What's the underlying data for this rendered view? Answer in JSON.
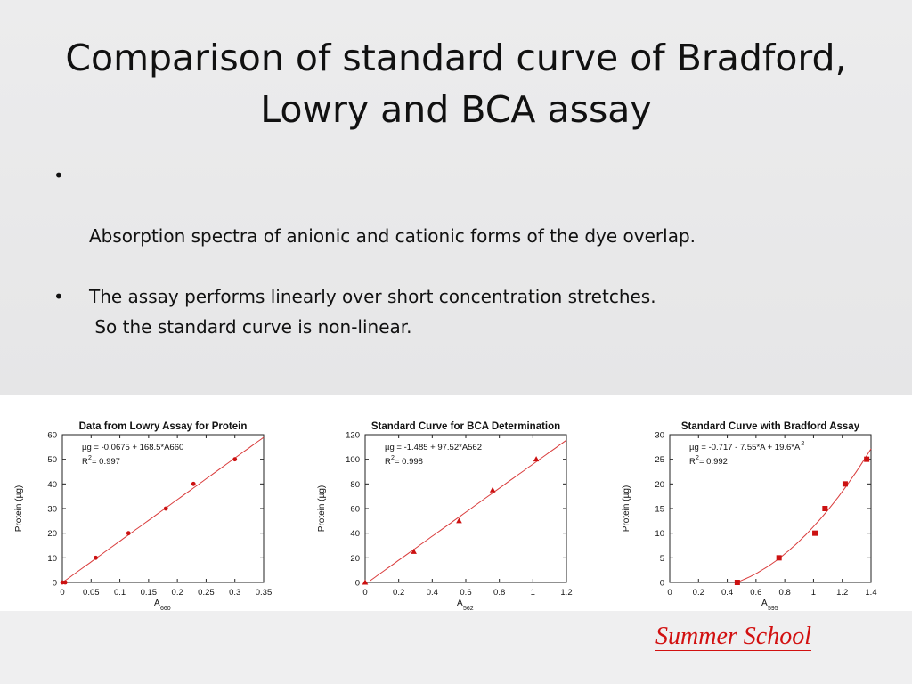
{
  "slide": {
    "title_line1": "Comparison of standard curve of Bradford,",
    "title_line2": "Lowry and BCA assay",
    "bullets": [
      {
        "line1": "Absorption spectra of anionic and cationic forms of the dye overlap.",
        "line2": " So the standard curve is non-linear."
      },
      {
        "line1": "The assay performs linearly over short concentration stretches."
      }
    ],
    "bullet_symbol": "•",
    "footer": "Summer School"
  },
  "colors": {
    "accent": "#d21010",
    "plot_line": "#d93b3b",
    "plot_point": "#cc1111"
  },
  "chart_data": [
    {
      "type": "scatter",
      "title": "Data from Lowry Assay for Protein",
      "ylabel": "Protein (µg)",
      "xlabel_main": "A",
      "xlabel_sub": "660",
      "equation": "µg = -0.0675 + 168.5*A660",
      "r2_label": "R",
      "r2_sup": "2",
      "r2_value": " = 0.997",
      "xlim": [
        0,
        0.35
      ],
      "ylim": [
        0,
        60
      ],
      "xticks": [
        0,
        0.05,
        0.1,
        0.15,
        0.2,
        0.25,
        0.3,
        0.35
      ],
      "xtick_labels": [
        "0",
        "0.05",
        "0.1",
        "0.15",
        "0.2",
        "0.25",
        "0.3",
        "0.35"
      ],
      "yticks": [
        0,
        10,
        20,
        30,
        40,
        50,
        60
      ],
      "ytick_labels": [
        "0",
        "10",
        "20",
        "30",
        "40",
        "50",
        "60"
      ],
      "marker": "circle",
      "x": [
        0,
        0.005,
        0.058,
        0.115,
        0.18,
        0.228,
        0.3
      ],
      "y": [
        0,
        0,
        10,
        20,
        30,
        40,
        50
      ],
      "fit": {
        "kind": "linear",
        "a": -0.0675,
        "b": 168.5,
        "c": 0
      }
    },
    {
      "type": "scatter",
      "title": "Standard Curve for BCA Determination",
      "ylabel": "Protein (µg)",
      "xlabel_main": "A",
      "xlabel_sub": "562",
      "equation": "µg = -1.485 + 97.52*A562",
      "r2_label": "R",
      "r2_sup": "2",
      "r2_value": " = 0.998",
      "xlim": [
        0,
        1.2
      ],
      "ylim": [
        0,
        120
      ],
      "xticks": [
        0,
        0.2,
        0.4,
        0.6,
        0.8,
        1,
        1.2
      ],
      "xtick_labels": [
        "0",
        "0.2",
        "0.4",
        "0.6",
        "0.8",
        "1",
        "1.2"
      ],
      "yticks": [
        0,
        20,
        40,
        60,
        80,
        100,
        120
      ],
      "ytick_labels": [
        "0",
        "20",
        "40",
        "60",
        "80",
        "100",
        "120"
      ],
      "marker": "triangle",
      "x": [
        0.0,
        0.29,
        0.56,
        0.76,
        1.02
      ],
      "y": [
        0,
        25,
        50,
        75,
        100
      ],
      "fit": {
        "kind": "linear",
        "a": -1.485,
        "b": 97.52,
        "c": 0
      }
    },
    {
      "type": "scatter",
      "title": "Standard Curve with Bradford Assay",
      "ylabel": "Protein (µg)",
      "xlabel_main": "A",
      "xlabel_sub": "595",
      "equation": "µg = -0.717 - 7.55*A + 19.6*A",
      "equation_sup": "2",
      "r2_label": "R",
      "r2_sup": "2",
      "r2_value": " = 0.992",
      "xlim": [
        0,
        1.4
      ],
      "ylim": [
        0,
        30
      ],
      "xticks": [
        0,
        0.2,
        0.4,
        0.6,
        0.8,
        1,
        1.2,
        1.4
      ],
      "xtick_labels": [
        "0",
        "0.2",
        "0.4",
        "0.6",
        "0.8",
        "1",
        "1.2",
        "1.4"
      ],
      "yticks": [
        0,
        5,
        10,
        15,
        20,
        25,
        30
      ],
      "ytick_labels": [
        "0",
        "5",
        "10",
        "15",
        "20",
        "25",
        "30"
      ],
      "marker": "square",
      "x": [
        0.47,
        0.76,
        1.01,
        1.08,
        1.22,
        1.37
      ],
      "y": [
        0,
        5,
        10,
        15,
        20,
        25
      ],
      "fit": {
        "kind": "quadratic",
        "a": -0.717,
        "b": -7.55,
        "c": 19.6
      }
    }
  ]
}
